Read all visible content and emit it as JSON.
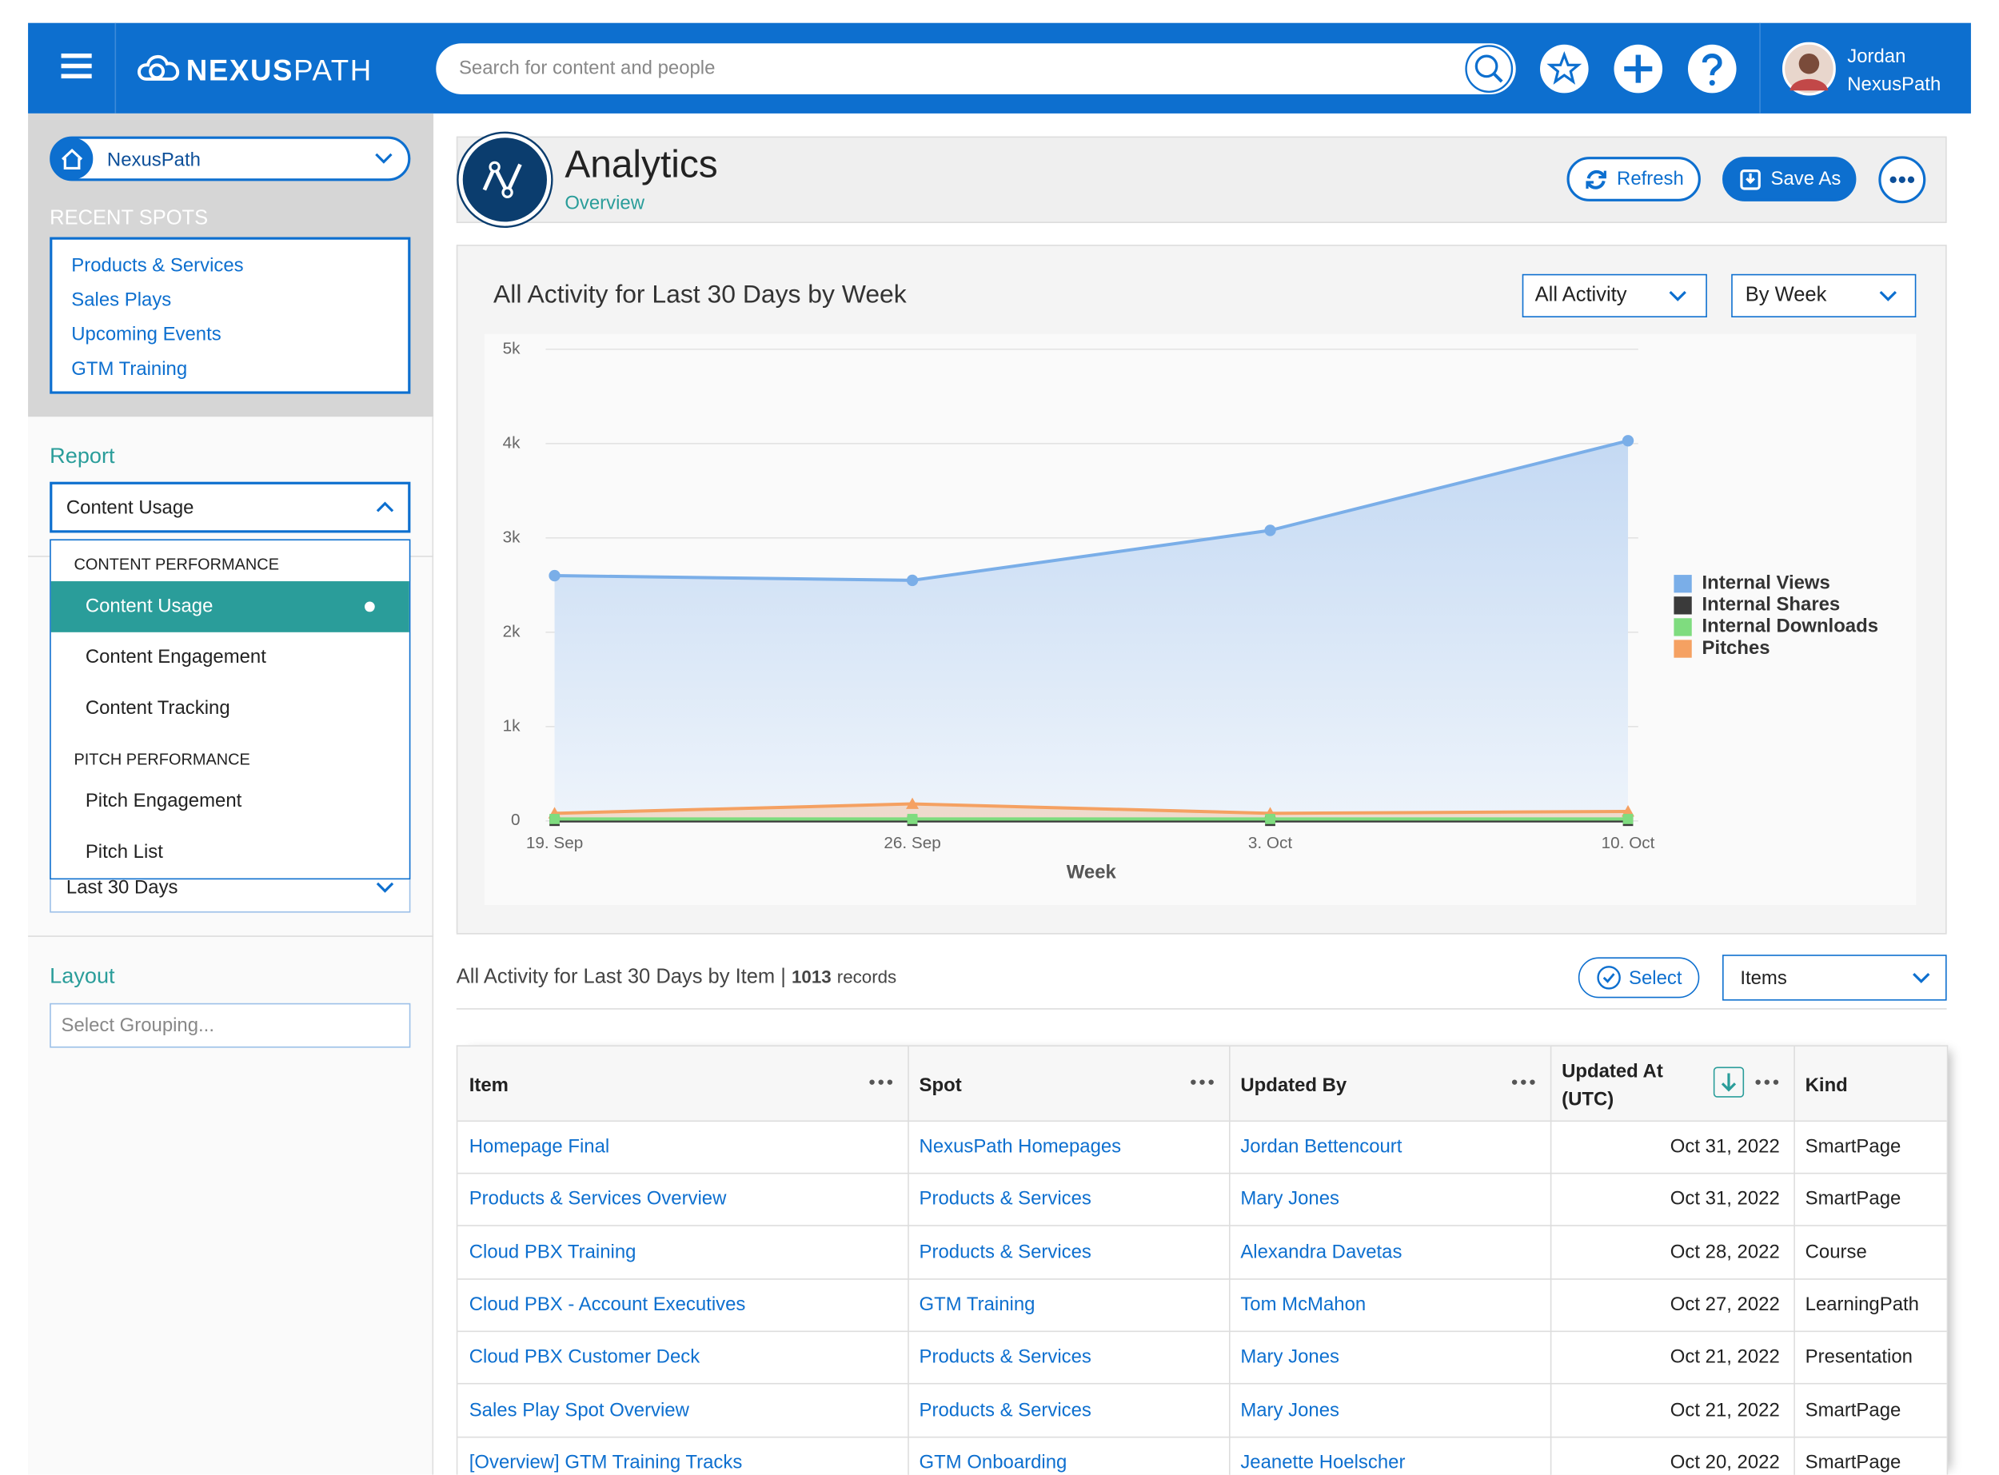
{
  "header": {
    "logo_bold": "NEXUS",
    "logo_light": "PATH",
    "search_placeholder": "Search for content and people",
    "user_first": "Jordan",
    "user_last": "NexusPath"
  },
  "sidebar": {
    "spot": "NexusPath",
    "recent_title": "RECENT SPOTS",
    "recent": [
      "Products & Services",
      "Sales Plays",
      "Upcoming Events",
      "GTM Training"
    ],
    "report_label": "Report",
    "report_value": "Content Usage",
    "report_groups": [
      {
        "title": "CONTENT PERFORMANCE",
        "items": [
          "Content Usage",
          "Content Engagement",
          "Content Tracking"
        ]
      },
      {
        "title": "PITCH PERFORMANCE",
        "items": [
          "Pitch Engagement",
          "Pitch List"
        ]
      }
    ],
    "range": "Last 30 Days",
    "layout_label": "Layout",
    "grouping_placeholder": "Select Grouping..."
  },
  "page": {
    "title": "Analytics",
    "subtitle": "Overview",
    "refresh": "Refresh",
    "save": "Save As"
  },
  "chart": {
    "type": "area",
    "title": "All Activity for Last 30 Days by Week",
    "filter_activity": "All Activity",
    "filter_period": "By Week",
    "x_label": "Week",
    "categories": [
      "19. Sep",
      "26. Sep",
      "3. Oct",
      "10. Oct"
    ],
    "series": [
      {
        "name": "Internal Views",
        "color": "#7aaee8",
        "values": [
          2600,
          2550,
          3080,
          4030
        ]
      },
      {
        "name": "Internal Shares",
        "color": "#3a3a3a",
        "values": [
          0,
          0,
          0,
          0
        ]
      },
      {
        "name": "Internal Downloads",
        "color": "#7fdc7f",
        "values": [
          20,
          20,
          20,
          20
        ]
      },
      {
        "name": "Pitches",
        "color": "#f5a162",
        "values": [
          80,
          180,
          80,
          100
        ]
      }
    ],
    "ylim": [
      0,
      5000
    ],
    "yticks": [
      0,
      {
        "value": 1000,
        "label": "1k"
      },
      {
        "value": 2000,
        "label": "2k"
      },
      {
        "value": 3000,
        "label": "3k"
      },
      {
        "value": 4000,
        "label": "4k"
      },
      {
        "value": 5000,
        "label": "5k"
      }
    ]
  },
  "table": {
    "title": "All Activity for Last 30 Days by Item |",
    "count": 1013,
    "count_label": "records",
    "select": "Select",
    "view": "Items",
    "columns": [
      "Item",
      "Spot",
      "Updated By",
      "Updated At (UTC)",
      "Kind"
    ],
    "rows": [
      [
        "Homepage Final",
        "NexusPath Homepages",
        "Jordan Bettencourt",
        "Oct 31, 2022",
        "SmartPage"
      ],
      [
        "Products & Services Overview",
        "Products & Services",
        "Mary Jones",
        "Oct 31, 2022",
        "SmartPage"
      ],
      [
        "Cloud PBX Training",
        "Products & Services",
        "Alexandra Davetas",
        "Oct 28, 2022",
        "Course"
      ],
      [
        "Cloud PBX - Account Executives",
        "GTM Training",
        "Tom McMahon",
        "Oct 27, 2022",
        "LearningPath"
      ],
      [
        "Cloud PBX Customer Deck",
        "Products & Services",
        "Mary Jones",
        "Oct 21, 2022",
        "Presentation"
      ],
      [
        "Sales Play Spot Overview",
        "Products & Services",
        "Mary Jones",
        "Oct 21, 2022",
        "SmartPage"
      ],
      [
        "[Overview] GTM Training Tracks",
        "GTM Onboarding",
        "Jeanette Hoelscher",
        "Oct 20, 2022",
        "SmartPage"
      ]
    ]
  }
}
